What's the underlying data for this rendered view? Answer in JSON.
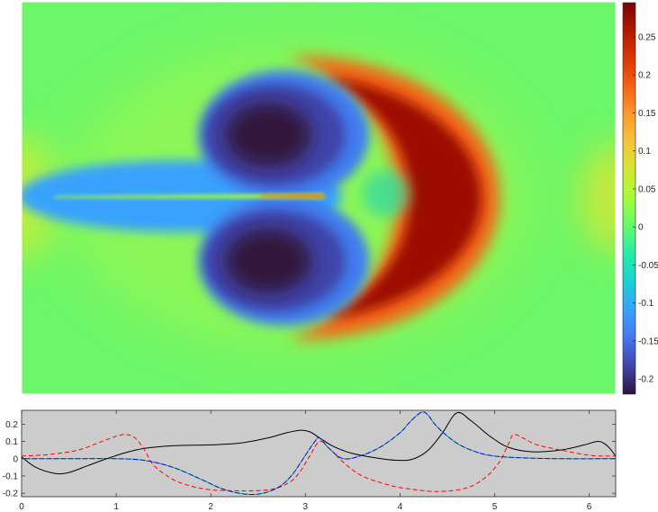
{
  "chart_data": [
    {
      "type": "heatmap",
      "description": "Color field plot with a dumbbell-shaped negative lobe pair and a crescent-shaped positive front",
      "colormap": [
        "#30123b",
        "#4145ab",
        "#4675ed",
        "#39a2fc",
        "#1bcfd4",
        "#24eca6",
        "#61fc6c",
        "#a4fc3b",
        "#d1e834",
        "#f3c63a",
        "#fe9b2d",
        "#f36315",
        "#d93806",
        "#b11901",
        "#7a0402"
      ],
      "colorbar": {
        "range": [
          -0.22,
          0.295
        ],
        "ticks": [
          -0.2,
          -0.15,
          -0.1,
          -0.05,
          0,
          0.05,
          0.1,
          0.15,
          0.2,
          0.25
        ],
        "tick_labels": [
          "-0.2",
          "-0.15",
          "-0.1",
          "-0.05",
          "0",
          "0.05",
          "0.1",
          "0.15",
          "0.2",
          "0.25"
        ]
      }
    },
    {
      "type": "line",
      "xlim": [
        0,
        6.28
      ],
      "ylim": [
        -0.22,
        0.28
      ],
      "xticks": [
        0,
        1,
        2,
        3,
        4,
        5,
        6
      ],
      "xtick_labels": [
        "0",
        "1",
        "2",
        "3",
        "4",
        "5",
        "6"
      ],
      "yticks": [
        -0.2,
        -0.1,
        0,
        0.1,
        0.2
      ],
      "ytick_labels": [
        "-0.2",
        "-0.1",
        "0",
        "0.1",
        "0.2"
      ],
      "background": "#cccccc",
      "series": [
        {
          "color": "#000000",
          "dash": "solid",
          "x": [
            0,
            0.15,
            0.35,
            0.5,
            0.7,
            0.9,
            1.1,
            1.3,
            1.6,
            2.0,
            2.3,
            2.6,
            2.8,
            2.95,
            3.05,
            3.15,
            3.3,
            3.5,
            3.8,
            4.0,
            4.15,
            4.3,
            4.45,
            4.6,
            4.75,
            4.95,
            5.15,
            5.4,
            5.7,
            5.95,
            6.1,
            6.2,
            6.28
          ],
          "y": [
            0.01,
            -0.05,
            -0.085,
            -0.08,
            -0.04,
            0.0,
            0.035,
            0.06,
            0.075,
            0.08,
            0.09,
            0.12,
            0.15,
            0.165,
            0.155,
            0.12,
            0.07,
            0.03,
            0.0,
            -0.01,
            0.0,
            0.05,
            0.15,
            0.265,
            0.22,
            0.13,
            0.065,
            0.04,
            0.05,
            0.08,
            0.1,
            0.07,
            0.015
          ]
        },
        {
          "color": "#ff0000",
          "dash": "dashed",
          "x": [
            0,
            0.3,
            0.6,
            0.85,
            1.0,
            1.1,
            1.2,
            1.3,
            1.4,
            1.6,
            1.8,
            2.0,
            2.2,
            2.5,
            2.7,
            2.85,
            2.95,
            3.05,
            3.15,
            3.25,
            3.4,
            3.6,
            3.9,
            4.1,
            4.4,
            4.7,
            4.9,
            5.05,
            5.15,
            5.2,
            5.3,
            5.45,
            5.7,
            6.0,
            6.28
          ],
          "y": [
            0.015,
            0.025,
            0.05,
            0.1,
            0.13,
            0.14,
            0.12,
            0.05,
            -0.04,
            -0.12,
            -0.16,
            -0.18,
            -0.185,
            -0.185,
            -0.17,
            -0.13,
            -0.07,
            0.02,
            0.1,
            0.06,
            -0.02,
            -0.1,
            -0.155,
            -0.175,
            -0.19,
            -0.17,
            -0.11,
            -0.02,
            0.09,
            0.14,
            0.12,
            0.08,
            0.05,
            0.02,
            0.015
          ]
        },
        {
          "color": "#00b050",
          "dash": "dashed",
          "x": [
            0,
            0.5,
            1.0,
            1.3,
            1.6,
            1.9,
            2.1,
            2.3,
            2.5,
            2.7,
            2.85,
            3.0,
            3.1,
            3.15,
            3.25,
            3.4,
            3.6,
            3.8,
            4.0,
            4.1,
            4.2,
            4.25,
            4.3,
            4.4,
            4.6,
            4.8,
            5.0,
            5.3,
            5.7,
            6.28
          ],
          "y": [
            0.0,
            0.0,
            0.0,
            -0.01,
            -0.05,
            -0.12,
            -0.17,
            -0.2,
            -0.205,
            -0.17,
            -0.1,
            0.02,
            0.1,
            0.12,
            0.06,
            0.0,
            0.02,
            0.07,
            0.15,
            0.21,
            0.26,
            0.27,
            0.25,
            0.18,
            0.09,
            0.04,
            0.015,
            0.005,
            0.0,
            0.0
          ]
        },
        {
          "color": "#0000ff",
          "dash": "dashed",
          "x": [
            0,
            0.5,
            1.0,
            1.3,
            1.6,
            1.9,
            2.1,
            2.3,
            2.5,
            2.7,
            2.85,
            3.0,
            3.1,
            3.15,
            3.25,
            3.4,
            3.6,
            3.8,
            4.0,
            4.1,
            4.2,
            4.25,
            4.3,
            4.4,
            4.6,
            4.8,
            5.0,
            5.3,
            5.7,
            6.28
          ],
          "y": [
            0.0,
            0.0,
            0.0,
            -0.01,
            -0.05,
            -0.12,
            -0.17,
            -0.2,
            -0.205,
            -0.17,
            -0.1,
            0.02,
            0.1,
            0.12,
            0.06,
            0.0,
            0.02,
            0.07,
            0.15,
            0.21,
            0.26,
            0.27,
            0.25,
            0.18,
            0.09,
            0.04,
            0.015,
            0.005,
            0.0,
            0.0
          ]
        }
      ]
    }
  ]
}
